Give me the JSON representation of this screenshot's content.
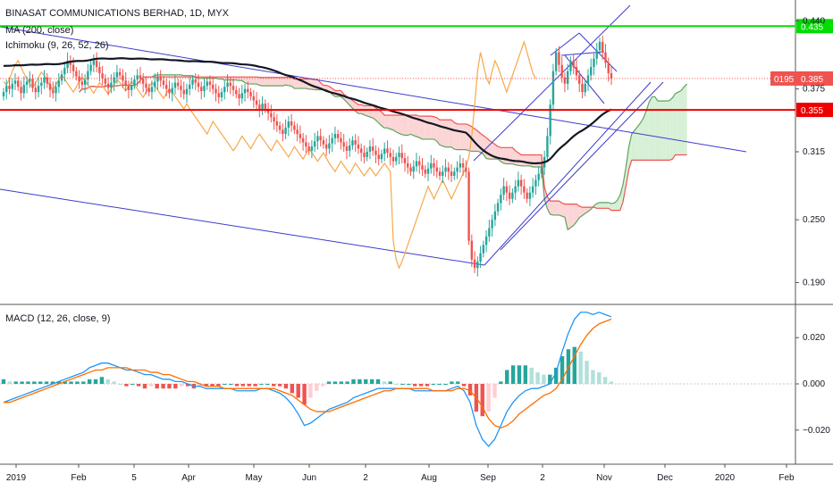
{
  "legend": {
    "symbol": "BINASAT COMMUNICATIONS BERHAD, 1D, MYX",
    "ma": "MA (200, close)",
    "ichimoku": "Ichimoku (9, 26, 52, 26)",
    "macd": "MACD (12, 26, close, 9)"
  },
  "colors": {
    "candle_up": "#26a69a",
    "candle_down": "#ef5350",
    "ma_line": "#131722",
    "lagging_span": "#f7a84a",
    "cloud_green_line": "#5fa35f",
    "cloud_red_line": "#ef5350",
    "cloud_green_fill": "#d6f0d6",
    "cloud_red_fill": "#fbd5d5",
    "trend_lines": "#3b3bcc",
    "macd_line": "#2196f3",
    "signal_line": "#ff6d00",
    "hline_green": "#00dd00",
    "hline_red": "#ee0000"
  },
  "chart_data": [
    {
      "type": "candlestick",
      "title": "BINASAT COMMUNICATIONS BERHAD, 1D, MYX",
      "x_axis_labels": [
        "2019",
        "Feb",
        "5",
        "Apr",
        "May",
        "Jun",
        "2",
        "Aug",
        "Sep",
        "2",
        "Nov",
        "Dec",
        "2020",
        "Feb"
      ],
      "y_ticks": [
        0.44,
        0.375,
        0.315,
        0.25,
        0.19
      ],
      "y_tick_labels": [
        "0.440",
        "0.375",
        "0.315",
        "0.250",
        "0.190"
      ],
      "ylim": [
        0.17,
        0.46
      ],
      "horizontal_lines": [
        {
          "value": 0.435,
          "label": "0.435",
          "color": "#00dd00"
        },
        {
          "value": 0.355,
          "label": "0.355",
          "color": "#ee0000"
        }
      ],
      "last_price_badge": {
        "left": "0195",
        "value": 0.385,
        "label": "0.385"
      },
      "close_series": [
        0.372,
        0.378,
        0.375,
        0.38,
        0.383,
        0.377,
        0.371,
        0.379,
        0.382,
        0.385,
        0.376,
        0.372,
        0.378,
        0.381,
        0.386,
        0.38,
        0.374,
        0.371,
        0.377,
        0.383,
        0.389,
        0.395,
        0.402,
        0.398,
        0.392,
        0.387,
        0.382,
        0.379,
        0.384,
        0.392,
        0.398,
        0.402,
        0.396,
        0.39,
        0.385,
        0.38,
        0.376,
        0.381,
        0.386,
        0.391,
        0.388,
        0.383,
        0.378,
        0.374,
        0.379,
        0.384,
        0.388,
        0.385,
        0.38,
        0.376,
        0.372,
        0.377,
        0.382,
        0.386,
        0.383,
        0.379,
        0.375,
        0.371,
        0.376,
        0.381,
        0.378,
        0.374,
        0.37,
        0.375,
        0.379,
        0.384,
        0.381,
        0.377,
        0.373,
        0.378,
        0.382,
        0.379,
        0.375,
        0.371,
        0.367,
        0.372,
        0.377,
        0.381,
        0.378,
        0.374,
        0.37,
        0.366,
        0.371,
        0.375,
        0.372,
        0.368,
        0.364,
        0.36,
        0.356,
        0.361,
        0.356,
        0.352,
        0.348,
        0.344,
        0.34,
        0.336,
        0.332,
        0.338,
        0.344,
        0.34,
        0.336,
        0.332,
        0.328,
        0.324,
        0.32,
        0.316,
        0.32,
        0.325,
        0.33,
        0.326,
        0.322,
        0.318,
        0.323,
        0.328,
        0.332,
        0.328,
        0.324,
        0.32,
        0.316,
        0.321,
        0.326,
        0.322,
        0.318,
        0.314,
        0.31,
        0.315,
        0.32,
        0.316,
        0.312,
        0.308,
        0.313,
        0.318,
        0.314,
        0.31,
        0.306,
        0.31,
        0.314,
        0.309,
        0.304,
        0.3,
        0.296,
        0.301,
        0.306,
        0.302,
        0.298,
        0.294,
        0.299,
        0.304,
        0.3,
        0.296,
        0.292,
        0.296,
        0.3,
        0.296,
        0.292,
        0.296,
        0.3,
        0.304,
        0.3,
        0.296,
        0.23,
        0.212,
        0.204,
        0.21,
        0.218,
        0.226,
        0.234,
        0.242,
        0.25,
        0.258,
        0.266,
        0.274,
        0.282,
        0.276,
        0.27,
        0.276,
        0.282,
        0.288,
        0.282,
        0.276,
        0.27,
        0.276,
        0.282,
        0.288,
        0.294,
        0.3,
        0.31,
        0.33,
        0.36,
        0.392,
        0.41,
        0.398,
        0.386,
        0.38,
        0.392,
        0.402,
        0.396,
        0.388,
        0.38,
        0.372,
        0.38,
        0.388,
        0.396,
        0.404,
        0.412,
        0.42,
        0.41,
        0.4,
        0.39,
        0.385
      ]
    },
    {
      "type": "line",
      "title": "MACD (12, 26, close, 9)",
      "y_ticks": [
        0.02,
        0.0,
        -0.02
      ],
      "y_tick_labels": [
        "0.020",
        "0.000",
        "−0.020"
      ],
      "ylim": [
        -0.034,
        0.034
      ],
      "series": [
        {
          "role": "macd",
          "values": [
            -0.008,
            -0.007,
            -0.006,
            -0.005,
            -0.004,
            -0.003,
            -0.002,
            -0.001,
            0.0,
            0.001,
            0.002,
            0.003,
            0.004,
            0.005,
            0.007,
            0.008,
            0.009,
            0.009,
            0.008,
            0.007,
            0.006,
            0.006,
            0.005,
            0.004,
            0.004,
            0.003,
            0.002,
            0.002,
            0.001,
            0.001,
            0.0,
            -0.001,
            -0.001,
            -0.002,
            -0.002,
            -0.002,
            -0.002,
            -0.002,
            -0.003,
            -0.003,
            -0.003,
            -0.003,
            -0.002,
            -0.002,
            -0.003,
            -0.004,
            -0.006,
            -0.009,
            -0.013,
            -0.018,
            -0.017,
            -0.015,
            -0.013,
            -0.011,
            -0.01,
            -0.009,
            -0.008,
            -0.006,
            -0.005,
            -0.004,
            -0.003,
            -0.002,
            -0.002,
            -0.002,
            -0.002,
            -0.002,
            -0.002,
            -0.003,
            -0.003,
            -0.003,
            -0.003,
            -0.003,
            -0.003,
            -0.002,
            -0.001,
            -0.003,
            -0.008,
            -0.018,
            -0.024,
            -0.027,
            -0.024,
            -0.018,
            -0.012,
            -0.008,
            -0.005,
            -0.003,
            -0.002,
            -0.002,
            -0.001,
            0.0,
            0.005,
            0.014,
            0.022,
            0.028,
            0.031,
            0.031,
            0.03,
            0.031,
            0.03,
            0.029
          ]
        },
        {
          "role": "signal",
          "values": [
            -0.008,
            -0.008,
            -0.007,
            -0.006,
            -0.005,
            -0.004,
            -0.003,
            -0.002,
            -0.001,
            0.0,
            0.001,
            0.002,
            0.003,
            0.004,
            0.005,
            0.006,
            0.006,
            0.007,
            0.007,
            0.007,
            0.007,
            0.006,
            0.006,
            0.006,
            0.005,
            0.005,
            0.004,
            0.004,
            0.003,
            0.002,
            0.001,
            0.001,
            0.0,
            -0.001,
            -0.001,
            -0.001,
            -0.002,
            -0.002,
            -0.002,
            -0.002,
            -0.002,
            -0.002,
            -0.002,
            -0.002,
            -0.002,
            -0.003,
            -0.004,
            -0.005,
            -0.007,
            -0.009,
            -0.011,
            -0.012,
            -0.012,
            -0.012,
            -0.011,
            -0.01,
            -0.009,
            -0.008,
            -0.007,
            -0.006,
            -0.005,
            -0.004,
            -0.003,
            -0.003,
            -0.002,
            -0.002,
            -0.002,
            -0.002,
            -0.002,
            -0.002,
            -0.003,
            -0.003,
            -0.003,
            -0.003,
            -0.002,
            -0.002,
            -0.003,
            -0.006,
            -0.01,
            -0.015,
            -0.018,
            -0.019,
            -0.018,
            -0.016,
            -0.013,
            -0.011,
            -0.009,
            -0.007,
            -0.005,
            -0.004,
            -0.002,
            0.002,
            0.007,
            0.012,
            0.017,
            0.021,
            0.024,
            0.026,
            0.027,
            0.028
          ]
        }
      ],
      "histogram": [
        0.002,
        0.001,
        0.001,
        0.001,
        0.001,
        0.001,
        0.001,
        0.001,
        0.001,
        0.001,
        0.001,
        0.001,
        0.001,
        0.001,
        0.002,
        0.002,
        0.003,
        0.002,
        0.001,
        0.0,
        -0.001,
        0.0,
        -0.001,
        -0.002,
        -0.001,
        -0.002,
        -0.002,
        -0.002,
        -0.002,
        -0.001,
        -0.001,
        -0.002,
        -0.001,
        -0.001,
        -0.001,
        -0.001,
        0.0,
        0.0,
        -0.001,
        -0.001,
        -0.001,
        -0.001,
        0.0,
        0.0,
        -0.001,
        -0.001,
        -0.002,
        -0.004,
        -0.006,
        -0.009,
        -0.006,
        -0.003,
        -0.001,
        0.001,
        0.001,
        0.001,
        0.001,
        0.002,
        0.002,
        0.002,
        0.002,
        0.002,
        0.001,
        0.001,
        0.0,
        0.0,
        0.0,
        -0.001,
        -0.001,
        -0.001,
        0.0,
        0.0,
        0.0,
        0.001,
        0.001,
        -0.001,
        -0.005,
        -0.012,
        -0.014,
        -0.012,
        -0.006,
        0.001,
        0.006,
        0.008,
        0.008,
        0.008,
        0.007,
        0.005,
        0.004,
        0.004,
        0.007,
        0.012,
        0.015,
        0.016,
        0.014,
        0.01,
        0.006,
        0.005,
        0.003,
        0.001
      ]
    }
  ]
}
